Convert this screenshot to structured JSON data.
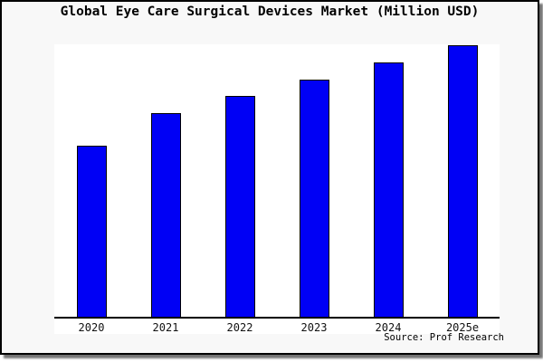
{
  "chart_data": {
    "type": "bar",
    "title": "Global Eye Care Surgical Devices Market (Million USD)",
    "categories": [
      "2020",
      "2021",
      "2022",
      "2023",
      "2024",
      "2025e"
    ],
    "values": [
      63.1,
      75.1,
      81.4,
      87.4,
      93.7,
      100
    ],
    "value_scale_note": "no y-axis scale or value labels visible; values normalized to 2025e = 100",
    "xlabel": "",
    "ylabel": "",
    "ylim": [
      0,
      100.3
    ],
    "grid": "off",
    "legend": "none",
    "source": "Source: Prof Research",
    "bar_color": "#0000F5",
    "bar_border_color": "#000000",
    "background_color": "#f8f8f8",
    "plot_background_color": "#ffffff"
  }
}
